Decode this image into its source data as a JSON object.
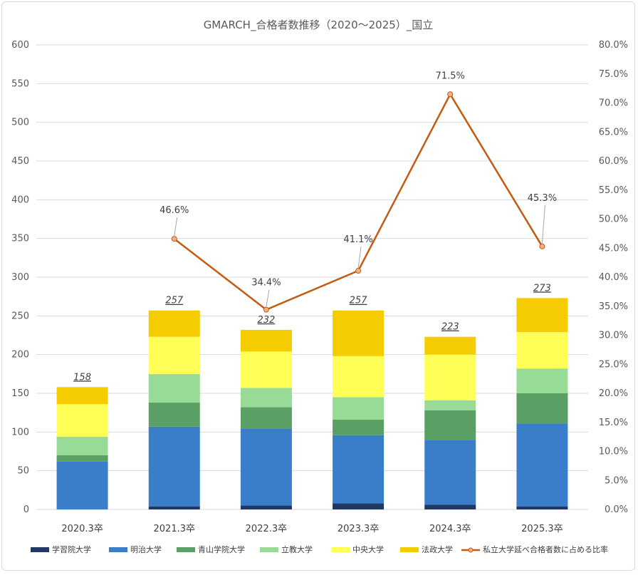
{
  "chart_data": {
    "type": "bar",
    "stacked": true,
    "title": "GMARCH_合格者数推移（2020～2025）_国立",
    "categories": [
      "2020.3卒",
      "2021.3卒",
      "2022.3卒",
      "2023.3卒",
      "2024.3卒",
      "2025.3卒"
    ],
    "ylim": [
      0,
      600
    ],
    "yticks": [
      "0",
      "50",
      "100",
      "150",
      "200",
      "250",
      "300",
      "350",
      "400",
      "450",
      "500",
      "550",
      "600"
    ],
    "y2lim": [
      0,
      0.8
    ],
    "y2ticks": [
      "0.0%",
      "5.0%",
      "10.0%",
      "15.0%",
      "20.0%",
      "25.0%",
      "30.0%",
      "35.0%",
      "40.0%",
      "45.0%",
      "50.0%",
      "55.0%",
      "60.0%",
      "65.0%",
      "70.0%",
      "75.0%",
      "80.0%"
    ],
    "grid": true,
    "legend_position": "bottom",
    "series": [
      {
        "name": "学習院大学",
        "color": "#203864",
        "values": [
          0,
          4,
          5,
          8,
          6,
          4
        ]
      },
      {
        "name": "明治大学",
        "color": "#3a7dc9",
        "values": [
          62,
          103,
          99,
          88,
          84,
          107
        ]
      },
      {
        "name": "青山学院大学",
        "color": "#5aa064",
        "values": [
          8,
          31,
          28,
          20,
          38,
          39
        ]
      },
      {
        "name": "立教大学",
        "color": "#98db96",
        "values": [
          24,
          37,
          25,
          29,
          13,
          32
        ]
      },
      {
        "name": "中央大学",
        "color": "#ffff57",
        "values": [
          42,
          48,
          47,
          53,
          59,
          47
        ]
      },
      {
        "name": "法政大学",
        "color": "#f4cc00",
        "values": [
          22,
          34,
          28,
          59,
          23,
          44
        ]
      }
    ],
    "totals": [
      158,
      257,
      232,
      257,
      223,
      273
    ],
    "totals_labels": [
      "158",
      "257",
      "232",
      "257",
      "223",
      "273"
    ],
    "line_series": {
      "name": "私立大学延べ合格者数に占める比率",
      "axis": "right",
      "color": "#c55a11",
      "marker_fill": "#f4b183",
      "values": [
        null,
        0.466,
        0.344,
        0.411,
        0.715,
        0.453
      ],
      "labels": [
        "",
        "46.6%",
        "34.4%",
        "41.1%",
        "71.5%",
        "45.3%"
      ]
    }
  }
}
